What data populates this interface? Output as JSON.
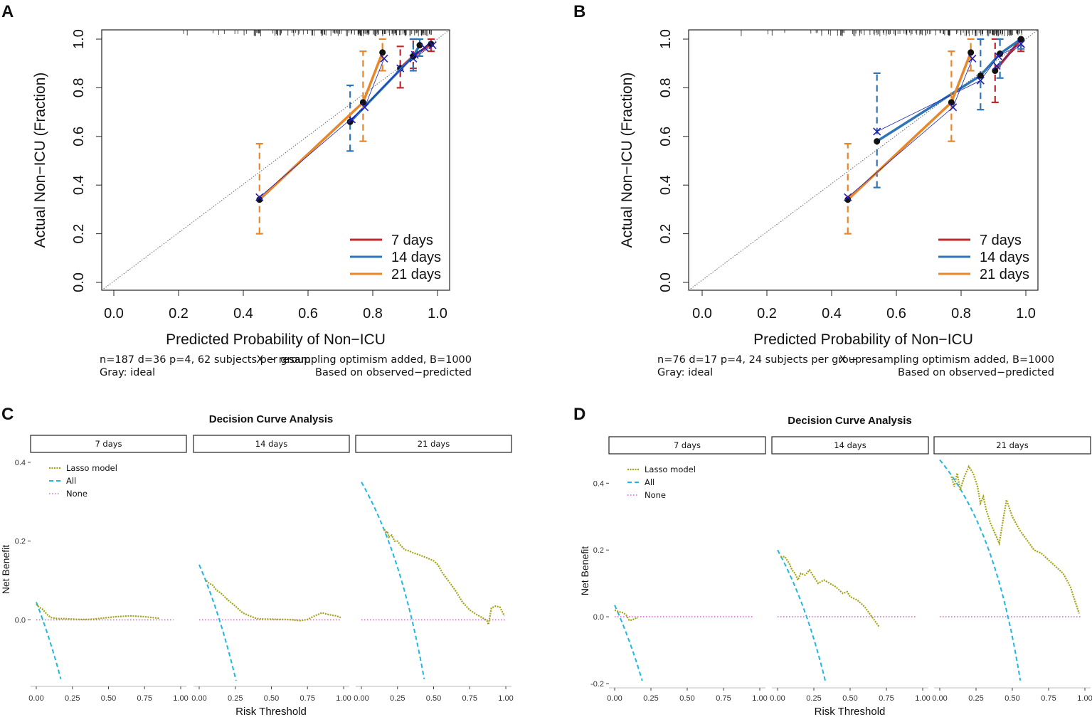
{
  "panel_letters": [
    "A",
    "B",
    "C",
    "D"
  ],
  "colors": {
    "d7": "#C1272D",
    "d14": "#2E75B6",
    "d21": "#E8872A",
    "point": "#111111",
    "resample": "#1E1EB4",
    "lasso": "#A3A313",
    "all": "#1FB7E3",
    "none": "#E05FD8",
    "ideal": "#666666"
  },
  "calibration_legend": [
    "7 days",
    "14 days",
    "21 days"
  ],
  "footers": {
    "A": {
      "left1": "n=187 d=36 p=4, 62 subjects per group",
      "right1": "X − resampling optimism added, B=1000",
      "left2": "Gray: ideal",
      "right2": "Based on observed−predicted"
    },
    "B": {
      "left1": "n=76 d=17 p=4, 24 subjects per group",
      "right1": "X − resampling optimism added, B=1000",
      "left2": "Gray: ideal",
      "right2": "Based on observed−predicted"
    }
  },
  "dca_legend": [
    "Lasso model",
    "All",
    "None"
  ],
  "chart_data": [
    {
      "panel": "A",
      "type": "line",
      "title": "",
      "xlabel": "Predicted Probability of Non−ICU",
      "ylabel": "Actual Non−ICU (Fraction)",
      "xlim": [
        0,
        1
      ],
      "ylim": [
        0,
        1
      ],
      "xticks": [
        "0.0",
        "0.2",
        "0.4",
        "0.6",
        "0.8",
        "1.0"
      ],
      "yticks": [
        "0.0",
        "0.2",
        "0.4",
        "0.6",
        "0.8",
        "1.0"
      ],
      "ideal_line": true,
      "series": [
        {
          "name": "7 days",
          "x": [
            0.885,
            0.925,
            0.98
          ],
          "y": [
            0.88,
            0.93,
            0.98
          ],
          "lo": [
            0.8,
            0.88,
            0.95
          ],
          "hi": [
            0.97,
            1.0,
            1.0
          ],
          "x_mark": [
            0.885,
            0.925,
            0.985
          ],
          "y_mark": [
            0.88,
            0.92,
            0.975
          ]
        },
        {
          "name": "14 days",
          "x": [
            0.73,
            0.925,
            0.945
          ],
          "y": [
            0.66,
            0.93,
            0.975
          ],
          "lo": [
            0.54,
            0.87,
            0.93
          ],
          "hi": [
            0.81,
            1.0,
            1.0
          ],
          "x_mark": [
            0.735,
            0.93,
            0.96
          ],
          "y_mark": [
            0.67,
            0.935,
            0.965
          ]
        },
        {
          "name": "21 days",
          "x": [
            0.45,
            0.77,
            0.83
          ],
          "y": [
            0.34,
            0.74,
            0.945
          ],
          "lo": [
            0.2,
            0.58,
            0.87
          ],
          "hi": [
            0.57,
            0.95,
            1.0
          ],
          "x_mark": [
            0.45,
            0.775,
            0.835
          ],
          "y_mark": [
            0.35,
            0.72,
            0.92
          ]
        }
      ]
    },
    {
      "panel": "B",
      "type": "line",
      "title": "",
      "xlabel": "Predicted Probability of Non−ICU",
      "ylabel": "Actual Non−ICU (Fraction)",
      "xlim": [
        0,
        1
      ],
      "ylim": [
        0,
        1
      ],
      "xticks": [
        "0.0",
        "0.2",
        "0.4",
        "0.6",
        "0.8",
        "1.0"
      ],
      "yticks": [
        "0.0",
        "0.2",
        "0.4",
        "0.6",
        "0.8",
        "1.0"
      ],
      "ideal_line": true,
      "series": [
        {
          "name": "7 days",
          "x": [
            0.905,
            0.985
          ],
          "y": [
            0.87,
            1.0
          ],
          "lo": [
            0.74,
            0.95
          ],
          "hi": [
            1.0,
            1.0
          ],
          "x_mark": [
            0.91,
            0.985
          ],
          "y_mark": [
            0.89,
            0.98
          ]
        },
        {
          "name": "14 days",
          "x": [
            0.54,
            0.86,
            0.92,
            0.985
          ],
          "y": [
            0.58,
            0.85,
            0.94,
            1.0
          ],
          "lo": [
            0.39,
            0.71,
            0.84,
            0.96
          ],
          "hi": [
            0.86,
            1.0,
            1.0,
            1.0
          ],
          "x_mark": [
            0.54,
            0.86,
            0.915,
            0.985
          ],
          "y_mark": [
            0.62,
            0.83,
            0.93,
            0.98
          ]
        },
        {
          "name": "21 days",
          "x": [
            0.45,
            0.77,
            0.83
          ],
          "y": [
            0.34,
            0.74,
            0.945
          ],
          "lo": [
            0.2,
            0.58,
            0.87
          ],
          "hi": [
            0.57,
            0.95,
            1.0
          ],
          "x_mark": [
            0.45,
            0.775,
            0.835
          ],
          "y_mark": [
            0.35,
            0.72,
            0.92
          ]
        }
      ]
    },
    {
      "panel": "C",
      "type": "line",
      "title": "Decision Curve Analysis",
      "xlabel": "Risk Threshold",
      "ylabel": "Net Benefit",
      "facets": [
        "7 days",
        "14 days",
        "21 days"
      ],
      "xlim": [
        0,
        1
      ],
      "ylim": [
        -0.16,
        0.4
      ],
      "xticks": [
        "0.00",
        "0.25",
        "0.50",
        "0.75",
        "1.00"
      ],
      "yticks": [
        0.4,
        0.2,
        0.0
      ],
      "ytick_labels": [
        "0.4",
        "0.2",
        "0.0"
      ],
      "facet_data": [
        {
          "facet": "7 days",
          "prevalence": 0.045,
          "lasso": [
            [
              0.0,
              0.04
            ],
            [
              0.02,
              0.032
            ],
            [
              0.04,
              0.028
            ],
            [
              0.06,
              0.02
            ],
            [
              0.08,
              0.012
            ],
            [
              0.1,
              0.006
            ],
            [
              0.15,
              0.003
            ],
            [
              0.2,
              0.003
            ],
            [
              0.25,
              0.002
            ],
            [
              0.3,
              0.001
            ],
            [
              0.35,
              0.001
            ],
            [
              0.4,
              0.002
            ],
            [
              0.45,
              0.004
            ],
            [
              0.5,
              0.006
            ],
            [
              0.55,
              0.008
            ],
            [
              0.6,
              0.009
            ],
            [
              0.65,
              0.01
            ],
            [
              0.7,
              0.009
            ],
            [
              0.75,
              0.008
            ],
            [
              0.8,
              0.006
            ],
            [
              0.85,
              0.004
            ]
          ],
          "none_range": [
            0,
            0.95
          ]
        },
        {
          "facet": "14 days",
          "prevalence": 0.14,
          "lasso": [
            [
              0.05,
              0.1
            ],
            [
              0.07,
              0.092
            ],
            [
              0.09,
              0.09
            ],
            [
              0.12,
              0.075
            ],
            [
              0.15,
              0.068
            ],
            [
              0.2,
              0.05
            ],
            [
              0.25,
              0.035
            ],
            [
              0.3,
              0.018
            ],
            [
              0.35,
              0.01
            ],
            [
              0.4,
              0.003
            ],
            [
              0.45,
              0.002
            ],
            [
              0.5,
              0.002
            ],
            [
              0.55,
              0.001
            ],
            [
              0.6,
              0.001
            ],
            [
              0.65,
              0.0
            ],
            [
              0.7,
              -0.002
            ],
            [
              0.75,
              0.001
            ],
            [
              0.8,
              0.01
            ],
            [
              0.85,
              0.018
            ],
            [
              0.9,
              0.013
            ],
            [
              0.95,
              0.01
            ],
            [
              0.98,
              0.006
            ]
          ],
          "none_range": [
            0,
            0.98
          ]
        },
        {
          "facet": "21 days",
          "prevalence": 0.35,
          "lasso": [
            [
              0.16,
              0.23
            ],
            [
              0.17,
              0.22
            ],
            [
              0.18,
              0.225
            ],
            [
              0.19,
              0.21
            ],
            [
              0.21,
              0.215
            ],
            [
              0.23,
              0.2
            ],
            [
              0.25,
              0.2
            ],
            [
              0.27,
              0.19
            ],
            [
              0.3,
              0.178
            ],
            [
              0.33,
              0.175
            ],
            [
              0.36,
              0.17
            ],
            [
              0.4,
              0.165
            ],
            [
              0.45,
              0.158
            ],
            [
              0.5,
              0.15
            ],
            [
              0.53,
              0.14
            ],
            [
              0.56,
              0.12
            ],
            [
              0.6,
              0.1
            ],
            [
              0.65,
              0.075
            ],
            [
              0.7,
              0.045
            ],
            [
              0.75,
              0.025
            ],
            [
              0.8,
              0.013
            ],
            [
              0.84,
              0.005
            ],
            [
              0.87,
              -0.002
            ],
            [
              0.88,
              -0.012
            ],
            [
              0.9,
              0.03
            ],
            [
              0.93,
              0.035
            ],
            [
              0.96,
              0.032
            ],
            [
              0.99,
              0.01
            ]
          ],
          "none_range": [
            0,
            1.0
          ]
        }
      ]
    },
    {
      "panel": "D",
      "type": "line",
      "title": "Decision Curve Analysis",
      "xlabel": "Risk Threshold",
      "ylabel": "Net Benefit",
      "facets": [
        "7 days",
        "14 days",
        "21 days"
      ],
      "xlim": [
        0,
        1
      ],
      "ylim": [
        -0.2,
        0.52
      ],
      "xticks": [
        "0.00",
        "0.25",
        "0.50",
        "0.75",
        "1.00"
      ],
      "yticks": [
        0.4,
        0.2,
        0.0,
        -0.2
      ],
      "ytick_labels": [
        "0.4",
        "0.2",
        "0.0",
        "-0.2"
      ],
      "facet_data": [
        {
          "facet": "7 days",
          "prevalence": 0.035,
          "lasso": [
            [
              0.0,
              0.02
            ],
            [
              0.03,
              0.015
            ],
            [
              0.06,
              0.012
            ],
            [
              0.08,
              0.005
            ],
            [
              0.1,
              -0.01
            ],
            [
              0.12,
              -0.01
            ],
            [
              0.14,
              -0.005
            ],
            [
              0.16,
              -0.003
            ]
          ],
          "none_range": [
            0,
            0.96
          ]
        },
        {
          "facet": "14 days",
          "prevalence": 0.2,
          "lasso": [
            [
              0.02,
              0.18
            ],
            [
              0.05,
              0.18
            ],
            [
              0.08,
              0.16
            ],
            [
              0.1,
              0.14
            ],
            [
              0.12,
              0.13
            ],
            [
              0.14,
              0.11
            ],
            [
              0.16,
              0.13
            ],
            [
              0.19,
              0.125
            ],
            [
              0.22,
              0.14
            ],
            [
              0.25,
              0.12
            ],
            [
              0.28,
              0.1
            ],
            [
              0.32,
              0.11
            ],
            [
              0.36,
              0.1
            ],
            [
              0.4,
              0.09
            ],
            [
              0.45,
              0.07
            ],
            [
              0.48,
              0.075
            ],
            [
              0.5,
              0.06
            ],
            [
              0.55,
              0.05
            ],
            [
              0.6,
              0.03
            ],
            [
              0.65,
              0.0
            ],
            [
              0.7,
              -0.03
            ]
          ],
          "none_range": [
            0,
            0.96
          ]
        },
        {
          "facet": "21 days",
          "prevalence": 0.47,
          "lasso": [
            [
              0.08,
              0.42
            ],
            [
              0.1,
              0.39
            ],
            [
              0.12,
              0.43
            ],
            [
              0.14,
              0.38
            ],
            [
              0.17,
              0.42
            ],
            [
              0.2,
              0.45
            ],
            [
              0.23,
              0.43
            ],
            [
              0.26,
              0.39
            ],
            [
              0.28,
              0.34
            ],
            [
              0.3,
              0.36
            ],
            [
              0.32,
              0.32
            ],
            [
              0.35,
              0.28
            ],
            [
              0.38,
              0.25
            ],
            [
              0.41,
              0.22
            ],
            [
              0.44,
              0.3
            ],
            [
              0.46,
              0.35
            ],
            [
              0.5,
              0.3
            ],
            [
              0.55,
              0.26
            ],
            [
              0.6,
              0.23
            ],
            [
              0.65,
              0.2
            ],
            [
              0.7,
              0.19
            ],
            [
              0.75,
              0.17
            ],
            [
              0.8,
              0.15
            ],
            [
              0.85,
              0.13
            ],
            [
              0.9,
              0.09
            ],
            [
              0.93,
              0.05
            ],
            [
              0.96,
              0.01
            ]
          ],
          "none_range": [
            0,
            0.98
          ]
        }
      ]
    }
  ]
}
